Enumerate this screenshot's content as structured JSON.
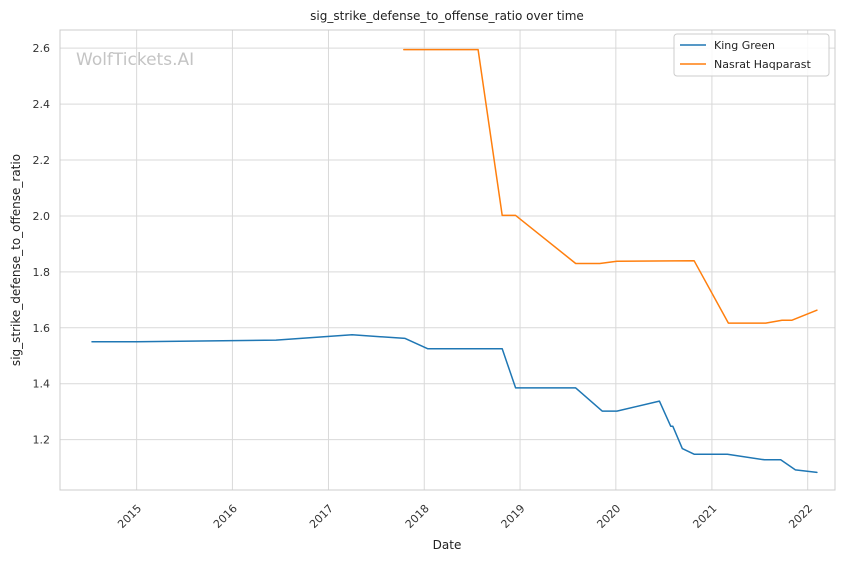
{
  "watermark": "WolfTickets.AI",
  "chart_data": {
    "type": "line",
    "title": "sig_strike_defense_to_offense_ratio over time",
    "xlabel": "Date",
    "ylabel": "sig_strike_defense_to_offense_ratio",
    "x_type": "date",
    "xlim": [
      "2014-03-15",
      "2022-04-15"
    ],
    "ylim": [
      1.02,
      2.665
    ],
    "x_ticks": [
      "2015-01-01",
      "2016-01-01",
      "2017-01-01",
      "2018-01-01",
      "2019-01-01",
      "2020-01-01",
      "2021-01-01",
      "2022-01-01"
    ],
    "x_tick_labels": [
      "2015",
      "2016",
      "2017",
      "2018",
      "2019",
      "2020",
      "2021",
      "2022"
    ],
    "y_ticks": [
      1.2,
      1.4,
      1.6,
      1.8,
      2.0,
      2.2,
      2.4,
      2.6
    ],
    "y_tick_labels": [
      "1.2",
      "1.4",
      "1.6",
      "1.8",
      "2.0",
      "2.2",
      "2.4",
      "2.6"
    ],
    "grid": true,
    "legend_position": "top-right",
    "series": [
      {
        "name": "King Green",
        "color": "#1f77b4",
        "points": [
          [
            "2014-07-15",
            1.55
          ],
          [
            "2015-01-01",
            1.55
          ],
          [
            "2016-06-15",
            1.556
          ],
          [
            "2017-04-01",
            1.575
          ],
          [
            "2017-10-20",
            1.562
          ],
          [
            "2018-01-15",
            1.525
          ],
          [
            "2018-10-25",
            1.525
          ],
          [
            "2018-12-15",
            1.385
          ],
          [
            "2019-08-01",
            1.385
          ],
          [
            "2019-11-10",
            1.302
          ],
          [
            "2020-01-05",
            1.302
          ],
          [
            "2020-06-15",
            1.338
          ],
          [
            "2020-07-28",
            1.248
          ],
          [
            "2020-08-05",
            1.248
          ],
          [
            "2020-09-10",
            1.168
          ],
          [
            "2020-10-25",
            1.148
          ],
          [
            "2021-03-01",
            1.148
          ],
          [
            "2021-07-20",
            1.128
          ],
          [
            "2021-09-20",
            1.128
          ],
          [
            "2021-11-15",
            1.092
          ],
          [
            "2022-02-05",
            1.083
          ]
        ]
      },
      {
        "name": "Nasrat Haqparast",
        "color": "#ff7f0e",
        "points": [
          [
            "2017-10-15",
            2.595
          ],
          [
            "2018-07-25",
            2.595
          ],
          [
            "2018-10-25",
            2.002
          ],
          [
            "2018-12-15",
            2.002
          ],
          [
            "2019-08-01",
            1.83
          ],
          [
            "2019-11-01",
            1.83
          ],
          [
            "2020-01-05",
            1.838
          ],
          [
            "2020-10-25",
            1.84
          ],
          [
            "2021-03-05",
            1.617
          ],
          [
            "2021-07-25",
            1.617
          ],
          [
            "2021-09-25",
            1.627
          ],
          [
            "2021-11-01",
            1.627
          ],
          [
            "2022-02-05",
            1.663
          ]
        ]
      }
    ]
  }
}
